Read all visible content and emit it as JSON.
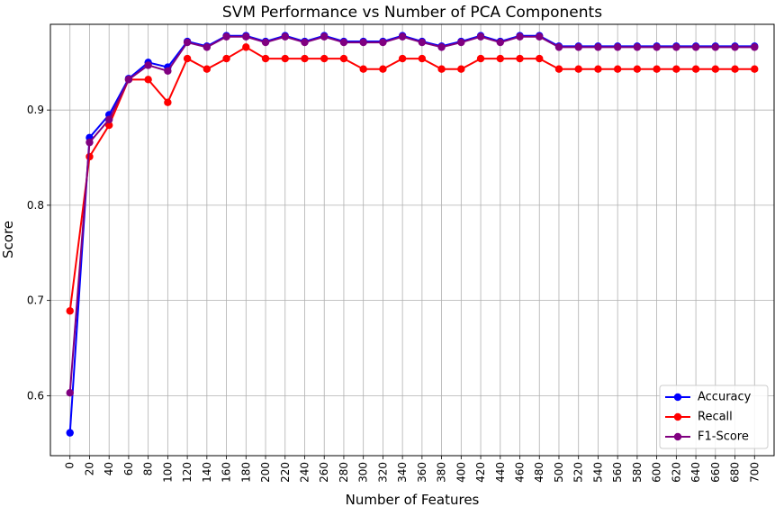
{
  "chart_data": {
    "type": "line",
    "title": "SVM Performance vs Number of PCA Components",
    "xlabel": "Number of Features",
    "ylabel": "Score",
    "x": [
      0,
      20,
      40,
      60,
      80,
      100,
      120,
      140,
      160,
      180,
      200,
      220,
      240,
      260,
      280,
      300,
      320,
      340,
      360,
      380,
      400,
      420,
      440,
      460,
      480,
      500,
      520,
      540,
      560,
      580,
      600,
      620,
      640,
      660,
      680,
      700
    ],
    "xlim": [
      -20,
      720
    ],
    "ylim": [
      0.537,
      0.99
    ],
    "yticks": [
      0.6,
      0.7,
      0.8,
      0.9
    ],
    "ytick_labels": [
      "0.6",
      "0.7",
      "0.8",
      "0.9"
    ],
    "grid": true,
    "legend_position": "bottom-right",
    "series": [
      {
        "name": "Accuracy",
        "color": "#0000ff",
        "values": [
          0.561,
          0.871,
          0.895,
          0.933,
          0.95,
          0.945,
          0.972,
          0.967,
          0.978,
          0.978,
          0.972,
          0.978,
          0.972,
          0.978,
          0.972,
          0.972,
          0.972,
          0.978,
          0.972,
          0.967,
          0.972,
          0.978,
          0.972,
          0.978,
          0.978,
          0.967,
          0.967,
          0.967,
          0.967,
          0.967,
          0.967,
          0.967,
          0.967,
          0.967,
          0.967,
          0.967
        ]
      },
      {
        "name": "Recall",
        "color": "#ff0000",
        "values": [
          0.689,
          0.851,
          0.884,
          0.932,
          0.932,
          0.908,
          0.954,
          0.943,
          0.954,
          0.966,
          0.954,
          0.954,
          0.954,
          0.954,
          0.954,
          0.943,
          0.943,
          0.954,
          0.954,
          0.943,
          0.943,
          0.954,
          0.954,
          0.954,
          0.954,
          0.943,
          0.943,
          0.943,
          0.943,
          0.943,
          0.943,
          0.943,
          0.943,
          0.943,
          0.943,
          0.943
        ]
      },
      {
        "name": "F1-Score",
        "color": "#800080",
        "values": [
          0.603,
          0.866,
          0.89,
          0.932,
          0.947,
          0.941,
          0.971,
          0.966,
          0.977,
          0.977,
          0.971,
          0.977,
          0.971,
          0.977,
          0.971,
          0.971,
          0.971,
          0.977,
          0.971,
          0.966,
          0.971,
          0.977,
          0.971,
          0.977,
          0.977,
          0.966,
          0.966,
          0.966,
          0.966,
          0.966,
          0.966,
          0.966,
          0.966,
          0.966,
          0.966,
          0.966
        ]
      }
    ]
  }
}
